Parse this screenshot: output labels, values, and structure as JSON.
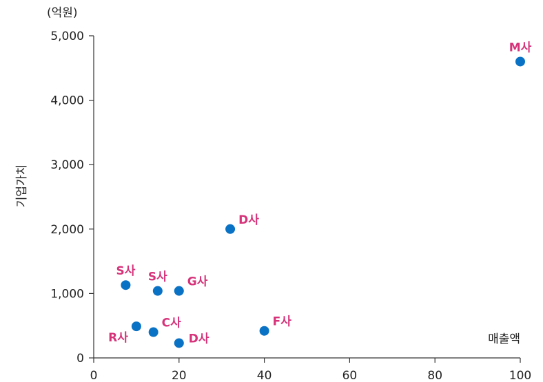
{
  "chart_data": {
    "type": "scatter",
    "title": "",
    "xlabel": "매출액",
    "ylabel": "기업가치",
    "y_unit": "(억원)",
    "xlim": [
      0,
      100
    ],
    "ylim": [
      0,
      5000
    ],
    "x_ticks": [
      0,
      20,
      40,
      60,
      80,
      100
    ],
    "y_ticks": [
      0,
      1000,
      2000,
      3000,
      4000,
      5000
    ],
    "x_tick_labels": [
      "0",
      "20",
      "40",
      "60",
      "80",
      "100"
    ],
    "y_tick_labels": [
      "0",
      "1,000",
      "2,000",
      "3,000",
      "4,000",
      "5,000"
    ],
    "grid": false,
    "point_color": "#0A72C4",
    "label_color": "#D6337A",
    "points": [
      {
        "label": "M사",
        "x": 100,
        "y": 4600,
        "label_pos": "above"
      },
      {
        "label": "D사",
        "x": 32,
        "y": 2000,
        "label_pos": "right-above"
      },
      {
        "label": "S사",
        "x": 7.5,
        "y": 1130,
        "label_pos": "above"
      },
      {
        "label": "S사",
        "x": 15,
        "y": 1040,
        "label_pos": "above"
      },
      {
        "label": "G사",
        "x": 20,
        "y": 1040,
        "label_pos": "right-above"
      },
      {
        "label": "R사",
        "x": 10,
        "y": 490,
        "label_pos": "left-below"
      },
      {
        "label": "C사",
        "x": 14,
        "y": 400,
        "label_pos": "right-above"
      },
      {
        "label": "D사",
        "x": 20,
        "y": 230,
        "label_pos": "right"
      },
      {
        "label": "F사",
        "x": 40,
        "y": 420,
        "label_pos": "right-above"
      }
    ]
  }
}
